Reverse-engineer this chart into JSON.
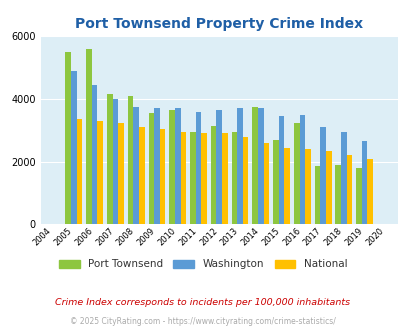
{
  "title": "Port Townsend Property Crime Index",
  "years": [
    2004,
    2005,
    2006,
    2007,
    2008,
    2009,
    2010,
    2011,
    2012,
    2013,
    2014,
    2015,
    2016,
    2017,
    2018,
    2019,
    2020
  ],
  "port_townsend": [
    0,
    5500,
    5600,
    4150,
    4100,
    3550,
    3650,
    2950,
    3150,
    2950,
    3750,
    2700,
    3250,
    1850,
    1900,
    1800,
    0
  ],
  "washington": [
    0,
    4900,
    4450,
    4000,
    3750,
    3700,
    3700,
    3600,
    3650,
    3700,
    3700,
    3450,
    3500,
    3100,
    2950,
    2650,
    0
  ],
  "national": [
    0,
    3350,
    3300,
    3250,
    3100,
    3050,
    2950,
    2900,
    2900,
    2800,
    2600,
    2450,
    2400,
    2350,
    2200,
    2100,
    0
  ],
  "colors": {
    "port_townsend": "#8dc63f",
    "washington": "#5b9bd5",
    "national": "#ffc000"
  },
  "ylim": [
    0,
    6000
  ],
  "yticks": [
    0,
    2000,
    4000,
    6000
  ],
  "bg_color": "#ddeef6",
  "legend_labels": [
    "Port Townsend",
    "Washington",
    "National"
  ],
  "footnote1": "Crime Index corresponds to incidents per 100,000 inhabitants",
  "footnote2": "© 2025 CityRating.com - https://www.cityrating.com/crime-statistics/"
}
